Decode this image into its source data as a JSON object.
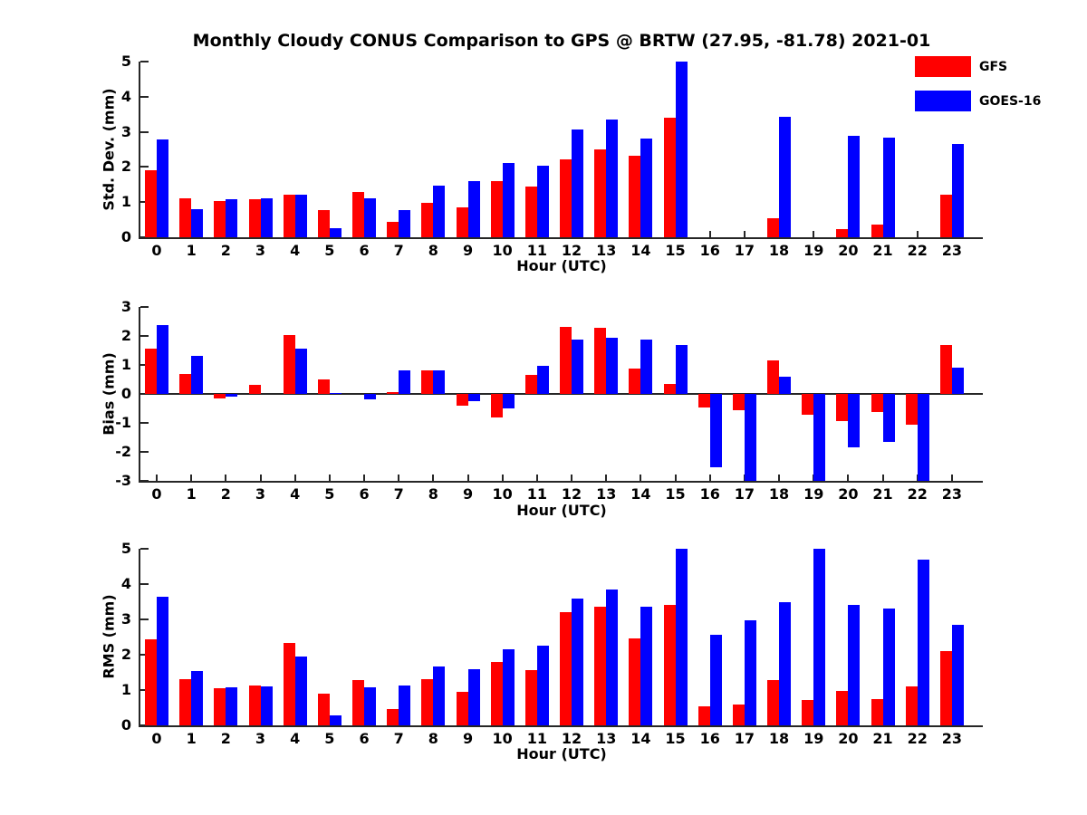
{
  "title": "Monthly Cloudy CONUS Comparison to GPS @ BRTW (27.95, -81.78) 2021-01",
  "legend": {
    "position": "top-right",
    "items": [
      {
        "label": "GFS",
        "color": "#ff0000"
      },
      {
        "label": "GOES-16",
        "color": "#0000ff"
      }
    ]
  },
  "colors": {
    "gfs": "#ff0000",
    "goes16": "#0000ff",
    "axis": "#262626",
    "text": "#000000",
    "background": "#ffffff"
  },
  "chart_data": [
    {
      "type": "bar",
      "subplot": "std-dev",
      "ylabel": "Std. Dev. (mm)",
      "xlabel": "Hour (UTC)",
      "ylim": [
        0,
        5
      ],
      "yticks": [
        0,
        1,
        2,
        3,
        4,
        5
      ],
      "grid": false,
      "categories": [
        "0",
        "1",
        "2",
        "3",
        "4",
        "5",
        "6",
        "7",
        "8",
        "9",
        "10",
        "11",
        "12",
        "13",
        "14",
        "15",
        "16",
        "17",
        "18",
        "19",
        "20",
        "21",
        "22",
        "23"
      ],
      "series": [
        {
          "name": "GFS",
          "color": "#ff0000",
          "values": [
            1.9,
            1.1,
            1.03,
            1.07,
            1.2,
            0.77,
            1.28,
            0.43,
            0.98,
            0.86,
            1.61,
            1.44,
            2.21,
            2.49,
            2.32,
            3.41,
            0,
            0,
            0.55,
            0,
            0.22,
            0.36,
            0,
            1.2
          ]
        },
        {
          "name": "GOES-16",
          "color": "#0000ff",
          "values": [
            2.78,
            0.8,
            1.07,
            1.1,
            1.2,
            0.25,
            1.1,
            0.77,
            1.48,
            1.6,
            2.12,
            2.04,
            3.07,
            3.35,
            2.81,
            5.0,
            0,
            0,
            3.43,
            0,
            2.88,
            2.83,
            0,
            2.66
          ]
        }
      ]
    },
    {
      "type": "bar",
      "subplot": "bias",
      "ylabel": "Bias (mm)",
      "xlabel": "Hour (UTC)",
      "ylim": [
        -3,
        3
      ],
      "yticks": [
        -3,
        -2,
        -1,
        0,
        1,
        2,
        3
      ],
      "grid": false,
      "categories": [
        "0",
        "1",
        "2",
        "3",
        "4",
        "5",
        "6",
        "7",
        "8",
        "9",
        "10",
        "11",
        "12",
        "13",
        "14",
        "15",
        "16",
        "17",
        "18",
        "19",
        "20",
        "21",
        "22",
        "23"
      ],
      "series": [
        {
          "name": "GFS",
          "color": "#ff0000",
          "values": [
            1.57,
            0.7,
            -0.17,
            0.31,
            2.02,
            0.49,
            0.0,
            0.07,
            0.82,
            -0.4,
            -0.82,
            0.65,
            2.32,
            2.28,
            0.88,
            0.35,
            -0.48,
            -0.57,
            1.15,
            -0.71,
            -0.94,
            -0.61,
            -1.06,
            1.69
          ]
        },
        {
          "name": "GOES-16",
          "color": "#0000ff",
          "values": [
            2.36,
            1.32,
            -0.1,
            0.0,
            1.55,
            0.04,
            -0.18,
            0.81,
            0.82,
            -0.24,
            -0.5,
            0.96,
            1.86,
            1.93,
            1.86,
            1.7,
            -2.52,
            -3.0,
            0.6,
            -3.0,
            -1.84,
            -1.65,
            -3.0,
            0.9
          ]
        }
      ]
    },
    {
      "type": "bar",
      "subplot": "rms",
      "ylabel": "RMS (mm)",
      "xlabel": "Hour (UTC)",
      "ylim": [
        0,
        5
      ],
      "yticks": [
        0,
        1,
        2,
        3,
        4,
        5
      ],
      "grid": false,
      "categories": [
        "0",
        "1",
        "2",
        "3",
        "4",
        "5",
        "6",
        "7",
        "8",
        "9",
        "10",
        "11",
        "12",
        "13",
        "14",
        "15",
        "16",
        "17",
        "18",
        "19",
        "20",
        "21",
        "22",
        "23"
      ],
      "series": [
        {
          "name": "GFS",
          "color": "#ff0000",
          "values": [
            2.43,
            1.3,
            1.04,
            1.12,
            2.33,
            0.91,
            1.28,
            0.46,
            1.3,
            0.95,
            1.8,
            1.57,
            3.2,
            3.37,
            2.47,
            3.42,
            0.53,
            0.6,
            1.27,
            0.72,
            0.97,
            0.74,
            1.1,
            2.09
          ]
        },
        {
          "name": "GOES-16",
          "color": "#0000ff",
          "values": [
            3.63,
            1.53,
            1.07,
            1.09,
            1.94,
            0.27,
            1.08,
            1.13,
            1.67,
            1.6,
            2.15,
            2.26,
            3.58,
            3.84,
            3.37,
            5.0,
            2.56,
            2.97,
            3.48,
            5.0,
            3.41,
            3.31,
            4.68,
            2.84
          ]
        }
      ]
    }
  ]
}
